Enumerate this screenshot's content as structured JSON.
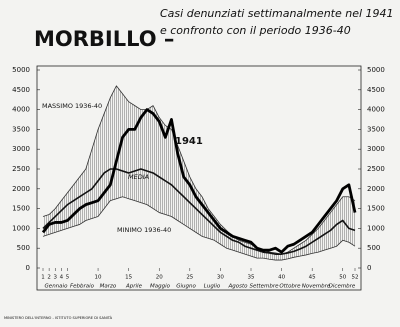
{
  "chart_data": {
    "type": "line",
    "title": "MORBILLO –",
    "subtitle": [
      "Casi denunziati settimanalmente nel 1941",
      "e confronto con il periodo 1936-40"
    ],
    "footer": "MINISTERO DELL'INTERNO - ISTITUTO SUPERIORE DI SANITÀ",
    "months": [
      "Gennaio",
      "Febbraio",
      "Marzo",
      "Aprile",
      "Maggio",
      "Giugno",
      "Luglio",
      "Agosto",
      "Settembre",
      "Ottobre",
      "Novembre",
      "Dicembre"
    ],
    "x": [
      1,
      2,
      3,
      4,
      5,
      6,
      7,
      8,
      9,
      10,
      11,
      12,
      13,
      14,
      15,
      16,
      17,
      18,
      19,
      20,
      21,
      22,
      23,
      24,
      25,
      26,
      27,
      28,
      29,
      30,
      31,
      32,
      33,
      34,
      35,
      36,
      37,
      38,
      39,
      40,
      41,
      42,
      43,
      44,
      45,
      46,
      47,
      48,
      49,
      50,
      51,
      52
    ],
    "xlim": [
      1,
      52
    ],
    "xticks": [
      1,
      2,
      3,
      4,
      5,
      10,
      15,
      20,
      25,
      30,
      35,
      40,
      45,
      50,
      52
    ],
    "ylim": [
      0,
      5000
    ],
    "yticks": [
      0,
      500,
      1000,
      1500,
      2000,
      2500,
      3000,
      3500,
      4000,
      4500,
      5000
    ],
    "band_color": "#777777",
    "series": [
      {
        "name": "MASSIMO 1936-40",
        "color": "#333333",
        "values": [
          1300,
          1350,
          1500,
          1700,
          1900,
          2100,
          2300,
          2500,
          3000,
          3500,
          3900,
          4300,
          4600,
          4400,
          4200,
          4100,
          4000,
          4000,
          4100,
          3800,
          3600,
          3500,
          3100,
          2700,
          2300,
          2000,
          1800,
          1500,
          1300,
          1100,
          950,
          800,
          700,
          650,
          600,
          500,
          450,
          400,
          380,
          350,
          400,
          500,
          600,
          700,
          850,
          1000,
          1200,
          1400,
          1600,
          1800,
          1800,
          1700
        ]
      },
      {
        "name": "MINIMO 1936-40",
        "color": "#333333",
        "values": [
          800,
          850,
          900,
          950,
          1000,
          1050,
          1100,
          1200,
          1250,
          1300,
          1500,
          1700,
          1750,
          1800,
          1750,
          1700,
          1650,
          1600,
          1500,
          1400,
          1350,
          1300,
          1200,
          1100,
          1000,
          900,
          800,
          750,
          700,
          600,
          500,
          450,
          400,
          350,
          300,
          250,
          250,
          220,
          200,
          200,
          230,
          270,
          300,
          330,
          370,
          400,
          450,
          500,
          550,
          700,
          650,
          550
        ]
      },
      {
        "name": "MEDIA",
        "color": "#111111",
        "values": [
          1000,
          1150,
          1300,
          1450,
          1600,
          1700,
          1800,
          1900,
          2000,
          2200,
          2400,
          2500,
          2500,
          2450,
          2400,
          2450,
          2500,
          2450,
          2400,
          2300,
          2200,
          2100,
          1950,
          1800,
          1650,
          1500,
          1350,
          1200,
          1050,
          900,
          800,
          700,
          650,
          550,
          500,
          450,
          400,
          380,
          350,
          350,
          380,
          420,
          480,
          550,
          650,
          750,
          850,
          950,
          1100,
          1200,
          1000,
          950
        ]
      },
      {
        "name": "1941",
        "color": "#000000",
        "values": [
          900,
          1100,
          1150,
          1150,
          1200,
          1350,
          1500,
          1600,
          1650,
          1700,
          1900,
          2100,
          2700,
          3300,
          3500,
          3500,
          3800,
          4000,
          3900,
          3700,
          3300,
          3750,
          2900,
          2300,
          2100,
          1800,
          1600,
          1400,
          1200,
          1000,
          900,
          800,
          750,
          700,
          650,
          500,
          450,
          450,
          500,
          400,
          550,
          600,
          700,
          800,
          900,
          1100,
          1300,
          1500,
          1700,
          2000,
          2100,
          1400
        ]
      }
    ]
  }
}
